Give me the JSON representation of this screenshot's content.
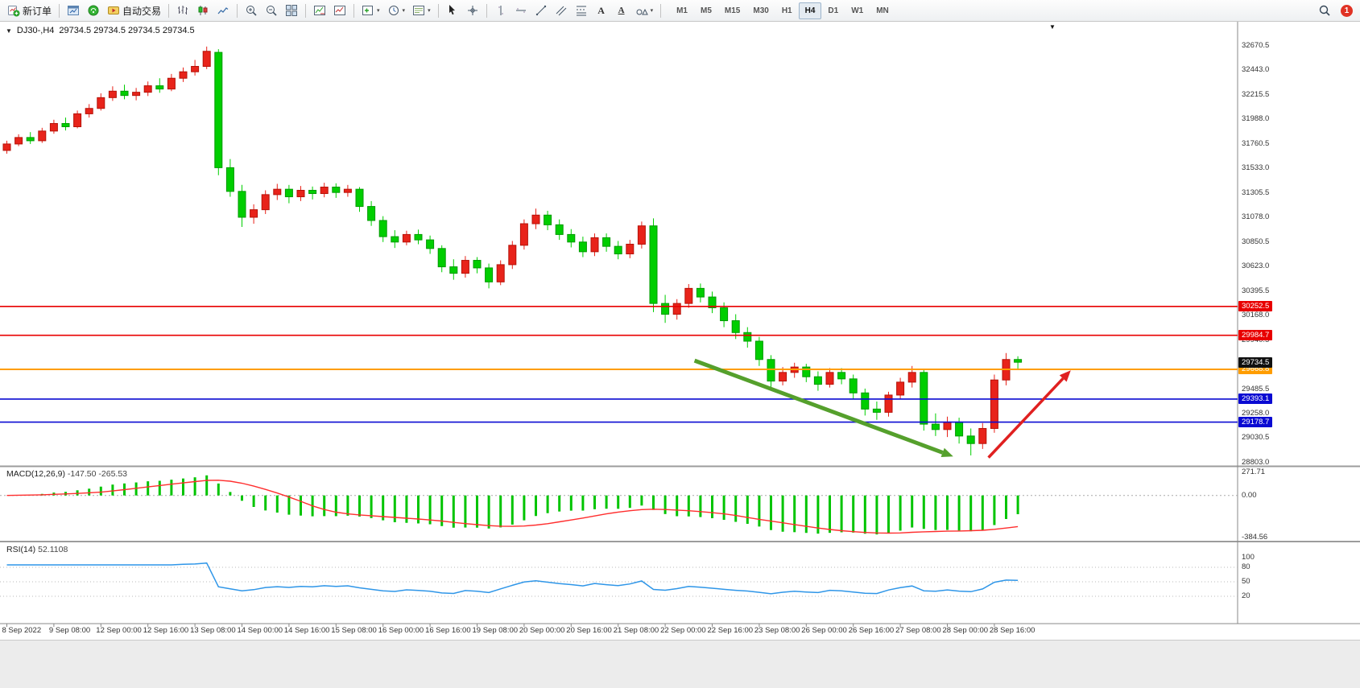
{
  "icons": {
    "caret": "▾",
    "one_click_marker": "▼",
    "chart_shift_marker": "▼",
    "text_tool": "A"
  },
  "toolbar": {
    "new_order_label": "新订单",
    "autotrade_label": "自动交易",
    "timeframes": [
      "M1",
      "M5",
      "M15",
      "M30",
      "H1",
      "H4",
      "D1",
      "W1",
      "MN"
    ],
    "active_timeframe": "H4",
    "notification_count": "1"
  },
  "chart": {
    "header": {
      "symbol_period": "DJ30-,H4",
      "ohlc": "29734.5 29734.5 29734.5 29734.5"
    }
  },
  "chart_data": {
    "type": "candlestick",
    "symbol": "DJ30-",
    "timeframe": "H4",
    "current_price": 29734.5,
    "colors": {
      "up": "#e8231a",
      "up_border": "#b51208",
      "down": "#00ce00",
      "down_border": "#009a00",
      "macd_hist": "#00c400",
      "macd_signal": "#ff2e2e",
      "rsi_line": "#2f96e8",
      "splitter": "#9c9c9c"
    },
    "price_axis_labels": [
      "32670.5",
      "32443.0",
      "32215.5",
      "31988.0",
      "31760.5",
      "31533.0",
      "31305.5",
      "31078.0",
      "30850.5",
      "30623.0",
      "30395.5",
      "30168.0",
      "29940.5",
      "29713.0",
      "29485.5",
      "29258.0",
      "29030.5",
      "28803.0"
    ],
    "time_labels": [
      "8 Sep 2022",
      "9 Sep 08:00",
      "12 Sep 00:00",
      "12 Sep 16:00",
      "13 Sep 08:00",
      "14 Sep 00:00",
      "14 Sep 16:00",
      "15 Sep 08:00",
      "16 Sep 00:00",
      "16 Sep 16:00",
      "19 Sep 08:00",
      "20 Sep 00:00",
      "20 Sep 16:00",
      "21 Sep 08:00",
      "22 Sep 00:00",
      "22 Sep 16:00",
      "23 Sep 08:00",
      "26 Sep 00:00",
      "26 Sep 16:00",
      "27 Sep 08:00",
      "28 Sep 00:00",
      "28 Sep 16:00"
    ],
    "label_every_n_candles": 4,
    "candles": [
      [
        31700,
        31790,
        31670,
        31760
      ],
      [
        31760,
        31850,
        31740,
        31820
      ],
      [
        31820,
        31870,
        31760,
        31790
      ],
      [
        31790,
        31910,
        31770,
        31880
      ],
      [
        31880,
        31985,
        31855,
        31950
      ],
      [
        31950,
        32005,
        31885,
        31920
      ],
      [
        31920,
        32070,
        31905,
        32040
      ],
      [
        32040,
        32130,
        32005,
        32090
      ],
      [
        32090,
        32230,
        32070,
        32190
      ],
      [
        32190,
        32295,
        32160,
        32250
      ],
      [
        32250,
        32310,
        32175,
        32210
      ],
      [
        32210,
        32280,
        32165,
        32240
      ],
      [
        32240,
        32340,
        32205,
        32300
      ],
      [
        32300,
        32370,
        32235,
        32270
      ],
      [
        32270,
        32410,
        32250,
        32370
      ],
      [
        32370,
        32470,
        32335,
        32430
      ],
      [
        32430,
        32540,
        32395,
        32480
      ],
      [
        32480,
        32664,
        32455,
        32620
      ],
      [
        32610,
        32640,
        31470,
        31540
      ],
      [
        31540,
        31620,
        31270,
        31320
      ],
      [
        31320,
        31380,
        30990,
        31080
      ],
      [
        31080,
        31200,
        31020,
        31150
      ],
      [
        31150,
        31330,
        31110,
        31290
      ],
      [
        31290,
        31390,
        31240,
        31340
      ],
      [
        31340,
        31380,
        31210,
        31270
      ],
      [
        31270,
        31370,
        31230,
        31330
      ],
      [
        31330,
        31365,
        31245,
        31300
      ],
      [
        31300,
        31400,
        31265,
        31360
      ],
      [
        31360,
        31395,
        31260,
        31310
      ],
      [
        31310,
        31380,
        31270,
        31340
      ],
      [
        31340,
        31360,
        31130,
        31180
      ],
      [
        31180,
        31230,
        31000,
        31050
      ],
      [
        31050,
        31090,
        30850,
        30900
      ],
      [
        30900,
        30960,
        30795,
        30850
      ],
      [
        30850,
        30955,
        30820,
        30920
      ],
      [
        30920,
        30965,
        30830,
        30870
      ],
      [
        30870,
        30910,
        30740,
        30790
      ],
      [
        30790,
        30820,
        30570,
        30620
      ],
      [
        30620,
        30690,
        30500,
        30560
      ],
      [
        30560,
        30720,
        30520,
        30680
      ],
      [
        30680,
        30710,
        30560,
        30610
      ],
      [
        30610,
        30650,
        30420,
        30480
      ],
      [
        30480,
        30680,
        30450,
        30640
      ],
      [
        30640,
        30860,
        30600,
        30820
      ],
      [
        30820,
        31060,
        30780,
        31020
      ],
      [
        31020,
        31160,
        30970,
        31100
      ],
      [
        31100,
        31140,
        30960,
        31010
      ],
      [
        31010,
        31060,
        30870,
        30920
      ],
      [
        30920,
        30970,
        30800,
        30850
      ],
      [
        30850,
        30900,
        30710,
        30760
      ],
      [
        30760,
        30930,
        30720,
        30890
      ],
      [
        30890,
        30930,
        30760,
        30810
      ],
      [
        30810,
        30860,
        30690,
        30740
      ],
      [
        30740,
        30870,
        30700,
        30830
      ],
      [
        30830,
        31040,
        30790,
        31000
      ],
      [
        31000,
        31070,
        30200,
        30280
      ],
      [
        30280,
        30360,
        30100,
        30180
      ],
      [
        30180,
        30320,
        30130,
        30280
      ],
      [
        30280,
        30460,
        30240,
        30420
      ],
      [
        30420,
        30465,
        30290,
        30340
      ],
      [
        30340,
        30390,
        30190,
        30240
      ],
      [
        30240,
        30290,
        30060,
        30120
      ],
      [
        30120,
        30180,
        29950,
        30010
      ],
      [
        30010,
        30060,
        29870,
        29930
      ],
      [
        29930,
        29970,
        29700,
        29760
      ],
      [
        29760,
        29800,
        29490,
        29560
      ],
      [
        29560,
        29690,
        29520,
        29640
      ],
      [
        29640,
        29730,
        29590,
        29690
      ],
      [
        29690,
        29720,
        29550,
        29600
      ],
      [
        29600,
        29650,
        29470,
        29530
      ],
      [
        29530,
        29680,
        29500,
        29640
      ],
      [
        29640,
        29680,
        29530,
        29580
      ],
      [
        29580,
        29620,
        29390,
        29450
      ],
      [
        29450,
        29490,
        29240,
        29300
      ],
      [
        29300,
        29370,
        29200,
        29270
      ],
      [
        29270,
        29460,
        29230,
        29430
      ],
      [
        29430,
        29590,
        29390,
        29550
      ],
      [
        29550,
        29700,
        29500,
        29640
      ],
      [
        29640,
        29670,
        29100,
        29160
      ],
      [
        29160,
        29260,
        29050,
        29110
      ],
      [
        29110,
        29230,
        29040,
        29180
      ],
      [
        29180,
        29220,
        28980,
        29050
      ],
      [
        29050,
        29120,
        28870,
        28980
      ],
      [
        28980,
        29170,
        28930,
        29120
      ],
      [
        29120,
        29620,
        29080,
        29570
      ],
      [
        29570,
        29820,
        29520,
        29760
      ],
      [
        29760,
        29790,
        29670,
        29734.5
      ]
    ],
    "price_lines": [
      {
        "value": 30252.5,
        "label": "30252.5",
        "color": "#e80000",
        "width": 1.6
      },
      {
        "value": 29984.7,
        "label": "29984.7",
        "color": "#e80000",
        "width": 1.6
      },
      {
        "value": 29668.8,
        "label": "29668.8",
        "color": "#ff9d00",
        "width": 2
      },
      {
        "value": 29393.1,
        "label": "29393.1",
        "color": "#0a0ad2",
        "width": 1.6
      },
      {
        "value": 29178.7,
        "label": "29178.7",
        "color": "#0a0ad2",
        "width": 1.6
      }
    ],
    "current_price_badge": {
      "value": 29734.5,
      "label": "29734.5",
      "bg": "#101010"
    },
    "arrows": [
      {
        "name": "downtrend-arrow",
        "i1": 58.5,
        "p1": 29750,
        "i2": 80.5,
        "p2": 28860,
        "color": "#55a02c",
        "width": 5
      },
      {
        "name": "reversal-arrow",
        "i1": 83.5,
        "p1": 28850,
        "i2": 90.5,
        "p2": 29660,
        "color": "#e02020",
        "width": 3.5
      }
    ],
    "macd": {
      "label": "MACD(12,26,9)",
      "values_text": "-147.50 -265.53",
      "fast": 12,
      "slow": 26,
      "signal": 9,
      "axis_labels": [
        "271.71",
        "0.00",
        "-384.56"
      ]
    },
    "rsi": {
      "label": "RSI(14)",
      "value_text": "52.1108",
      "period": 14,
      "levels": [
        80,
        50,
        20
      ],
      "axis_labels": [
        "100",
        "80",
        "50",
        "20"
      ]
    }
  }
}
